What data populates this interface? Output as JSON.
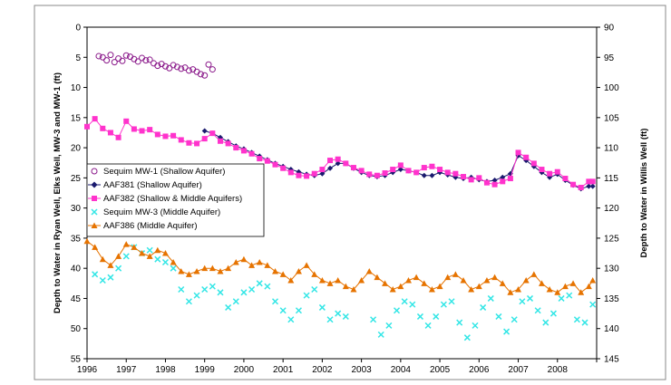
{
  "chart_data": {
    "type": "line",
    "xlabel": "",
    "ylabel_left": "Depth to Water in Ryan Well, Elks Well, MW-3 and MW-1 (ft)",
    "ylabel_right": "Depth to Water in Willis Well (ft)",
    "x_ticks": [
      "1996",
      "1997",
      "1998",
      "1999",
      "2000",
      "2001",
      "2002",
      "2003",
      "2004",
      "2005",
      "2006",
      "2007",
      "2008"
    ],
    "xlim": [
      1996,
      2009
    ],
    "ylim_left": [
      55,
      0
    ],
    "ylim_right": [
      145,
      90
    ],
    "y_ticks_left": [
      "0",
      "5",
      "10",
      "15",
      "20",
      "25",
      "30",
      "35",
      "40",
      "45",
      "50",
      "55"
    ],
    "y_ticks_right": [
      "90",
      "95",
      "100",
      "105",
      "110",
      "115",
      "120",
      "125",
      "130",
      "135",
      "140",
      "145"
    ],
    "grid": false,
    "legend_position": "left, middle",
    "series": [
      {
        "name": "Sequim MW-1 (Shallow Aquifer)",
        "axis": "left",
        "color": "#8B1A8B",
        "marker": "circle-open",
        "line": false,
        "x": [
          1996.3,
          1996.4,
          1996.5,
          1996.6,
          1996.7,
          1996.8,
          1996.9,
          1997.0,
          1997.1,
          1997.2,
          1997.3,
          1997.4,
          1997.5,
          1997.6,
          1997.7,
          1997.8,
          1997.9,
          1998.0,
          1998.1,
          1998.2,
          1998.3,
          1998.4,
          1998.5,
          1998.6,
          1998.7,
          1998.8,
          1998.9,
          1999.0,
          1999.1,
          1999.2
        ],
        "y": [
          4.8,
          5.0,
          5.5,
          4.6,
          5.8,
          5.2,
          5.6,
          4.7,
          4.9,
          5.3,
          5.7,
          5.1,
          5.5,
          5.4,
          6.0,
          6.4,
          6.1,
          6.5,
          6.8,
          6.3,
          6.6,
          6.9,
          6.7,
          7.2,
          7.0,
          7.4,
          7.8,
          8.0,
          6.2,
          7.0
        ]
      },
      {
        "name": "AAF381 (Shallow Aquifer)",
        "axis": "right",
        "color": "#1A1A6E",
        "marker": "diamond",
        "line": true,
        "x": [
          1999.0,
          1999.2,
          1999.4,
          1999.6,
          1999.8,
          2000.0,
          2000.2,
          2000.4,
          2000.6,
          2000.8,
          2001.0,
          2001.2,
          2001.4,
          2001.6,
          2001.8,
          2002.0,
          2002.2,
          2002.4,
          2002.6,
          2002.8,
          2003.0,
          2003.2,
          2003.4,
          2003.6,
          2003.8,
          2004.0,
          2004.2,
          2004.4,
          2004.6,
          2004.8,
          2005.0,
          2005.2,
          2005.4,
          2005.6,
          2005.8,
          2006.0,
          2006.2,
          2006.4,
          2006.6,
          2006.8,
          2007.0,
          2007.2,
          2007.4,
          2007.6,
          2007.8,
          2008.0,
          2008.2,
          2008.4,
          2008.6,
          2008.8,
          2008.9
        ],
        "y": [
          107.2,
          107.6,
          108.3,
          109.0,
          109.7,
          110.2,
          110.8,
          111.4,
          112.0,
          112.6,
          113.1,
          113.6,
          114.0,
          114.4,
          114.6,
          114.3,
          113.4,
          112.6,
          112.6,
          113.4,
          114.1,
          114.6,
          114.8,
          114.6,
          114.1,
          113.6,
          113.8,
          114.1,
          114.6,
          114.6,
          114.1,
          114.5,
          114.9,
          115.1,
          114.9,
          115.3,
          115.6,
          115.4,
          114.9,
          114.3,
          111.3,
          112.1,
          113.1,
          114.1,
          114.9,
          114.4,
          115.4,
          116.2,
          116.8,
          116.4,
          116.4
        ]
      },
      {
        "name": "AAF382 (Shallow & Middle Aquifers)",
        "axis": "left",
        "color": "#FF33CC",
        "marker": "square",
        "line": true,
        "x": [
          1996.0,
          1996.2,
          1996.4,
          1996.6,
          1996.8,
          1997.0,
          1997.2,
          1997.4,
          1997.6,
          1997.8,
          1998.0,
          1998.2,
          1998.4,
          1998.6,
          1998.8,
          1999.0,
          1999.2,
          1999.4,
          1999.6,
          1999.8,
          2000.0,
          2000.2,
          2000.4,
          2000.6,
          2000.8,
          2001.0,
          2001.2,
          2001.4,
          2001.6,
          2001.8,
          2002.0,
          2002.2,
          2002.4,
          2002.6,
          2002.8,
          2003.0,
          2003.2,
          2003.4,
          2003.6,
          2003.8,
          2004.0,
          2004.2,
          2004.4,
          2004.6,
          2004.8,
          2005.0,
          2005.2,
          2005.4,
          2005.6,
          2005.8,
          2006.0,
          2006.2,
          2006.4,
          2006.6,
          2006.8,
          2007.0,
          2007.2,
          2007.4,
          2007.6,
          2007.8,
          2008.0,
          2008.2,
          2008.4,
          2008.6,
          2008.8,
          2008.9
        ],
        "y": [
          16.5,
          15.2,
          16.8,
          17.5,
          18.3,
          15.6,
          16.9,
          17.2,
          17.0,
          17.8,
          18.1,
          18.0,
          18.7,
          19.2,
          19.3,
          18.5,
          17.6,
          18.9,
          19.3,
          20.0,
          20.5,
          21.0,
          21.8,
          22.2,
          22.8,
          23.4,
          24.1,
          24.6,
          24.7,
          24.3,
          23.6,
          22.1,
          21.9,
          22.6,
          23.3,
          23.8,
          24.4,
          24.6,
          24.2,
          23.6,
          22.9,
          23.8,
          24.1,
          23.3,
          23.1,
          23.6,
          24.1,
          24.3,
          24.8,
          25.3,
          25.0,
          25.8,
          26.1,
          25.6,
          25.1,
          20.8,
          21.6,
          22.6,
          23.6,
          24.3,
          24.0,
          25.1,
          26.1,
          26.6,
          25.6,
          25.6
        ]
      },
      {
        "name": "Sequim MW-3 (Middle Aquifer)",
        "axis": "left",
        "color": "#33E6E6",
        "marker": "x",
        "line": false,
        "x": [
          1996.2,
          1996.4,
          1996.6,
          1996.8,
          1997.0,
          1997.2,
          1997.4,
          1997.6,
          1997.8,
          1998.0,
          1998.2,
          1998.4,
          1998.6,
          1998.8,
          1999.0,
          1999.2,
          1999.4,
          1999.6,
          1999.8,
          2000.0,
          2000.2,
          2000.4,
          2000.6,
          2000.8,
          2001.0,
          2001.2,
          2001.4,
          2001.6,
          2001.8,
          2002.0,
          2002.2,
          2002.4,
          2002.6,
          2003.3,
          2003.5,
          2003.7,
          2003.9,
          2004.1,
          2004.3,
          2004.5,
          2004.7,
          2004.9,
          2005.1,
          2005.3,
          2005.5,
          2005.7,
          2005.9,
          2006.1,
          2006.3,
          2006.5,
          2006.7,
          2006.9,
          2007.1,
          2007.3,
          2007.5,
          2007.7,
          2007.9,
          2008.1,
          2008.3,
          2008.5,
          2008.7,
          2008.9
        ],
        "y": [
          41.0,
          42.0,
          41.5,
          40.0,
          38.0,
          36.5,
          37.5,
          37.0,
          38.5,
          39.0,
          40.0,
          43.5,
          45.5,
          44.5,
          43.5,
          43.0,
          44.0,
          46.5,
          45.5,
          44.0,
          43.5,
          42.5,
          43.0,
          45.5,
          47.0,
          48.5,
          47.0,
          44.5,
          43.5,
          46.5,
          48.5,
          47.5,
          48.0,
          48.5,
          51.0,
          49.5,
          47.0,
          45.5,
          46.0,
          48.0,
          49.5,
          48.0,
          46.0,
          45.5,
          49.0,
          51.5,
          49.5,
          46.5,
          45.0,
          48.0,
          50.5,
          48.5,
          45.5,
          45.0,
          47.0,
          49.0,
          47.5,
          45.0,
          44.5,
          48.5,
          49.0,
          46.0
        ]
      },
      {
        "name": "AAF386 (Middle Aquifer)",
        "axis": "left",
        "color": "#E67300",
        "marker": "triangle",
        "line": true,
        "x": [
          1996.0,
          1996.2,
          1996.4,
          1996.6,
          1996.8,
          1997.0,
          1997.2,
          1997.4,
          1997.6,
          1997.8,
          1998.0,
          1998.2,
          1998.4,
          1998.6,
          1998.8,
          1999.0,
          1999.2,
          1999.4,
          1999.6,
          1999.8,
          2000.0,
          2000.2,
          2000.4,
          2000.6,
          2000.8,
          2001.0,
          2001.2,
          2001.4,
          2001.6,
          2001.8,
          2002.0,
          2002.2,
          2002.4,
          2002.6,
          2002.8,
          2003.0,
          2003.2,
          2003.4,
          2003.6,
          2003.8,
          2004.0,
          2004.2,
          2004.4,
          2004.6,
          2004.8,
          2005.0,
          2005.2,
          2005.4,
          2005.6,
          2005.8,
          2006.0,
          2006.2,
          2006.4,
          2006.6,
          2006.8,
          2007.0,
          2007.2,
          2007.4,
          2007.6,
          2007.8,
          2008.0,
          2008.2,
          2008.4,
          2008.6,
          2008.8,
          2008.9
        ],
        "y": [
          35.5,
          36.5,
          38.5,
          39.5,
          38.0,
          36.0,
          36.5,
          37.5,
          38.0,
          37.0,
          37.5,
          39.0,
          40.5,
          41.0,
          40.5,
          40.0,
          40.0,
          40.5,
          40.0,
          39.0,
          38.5,
          39.5,
          39.0,
          39.5,
          40.5,
          41.0,
          42.0,
          40.5,
          39.5,
          41.0,
          42.0,
          42.5,
          42.0,
          43.0,
          43.5,
          42.0,
          40.5,
          41.5,
          42.5,
          43.5,
          43.0,
          42.0,
          41.5,
          42.5,
          43.5,
          43.0,
          41.5,
          41.0,
          42.0,
          43.5,
          43.0,
          42.0,
          41.5,
          42.5,
          44.0,
          43.5,
          42.0,
          41.0,
          42.5,
          43.5,
          44.0,
          43.0,
          42.5,
          44.0,
          43.0,
          42.0
        ]
      }
    ]
  }
}
